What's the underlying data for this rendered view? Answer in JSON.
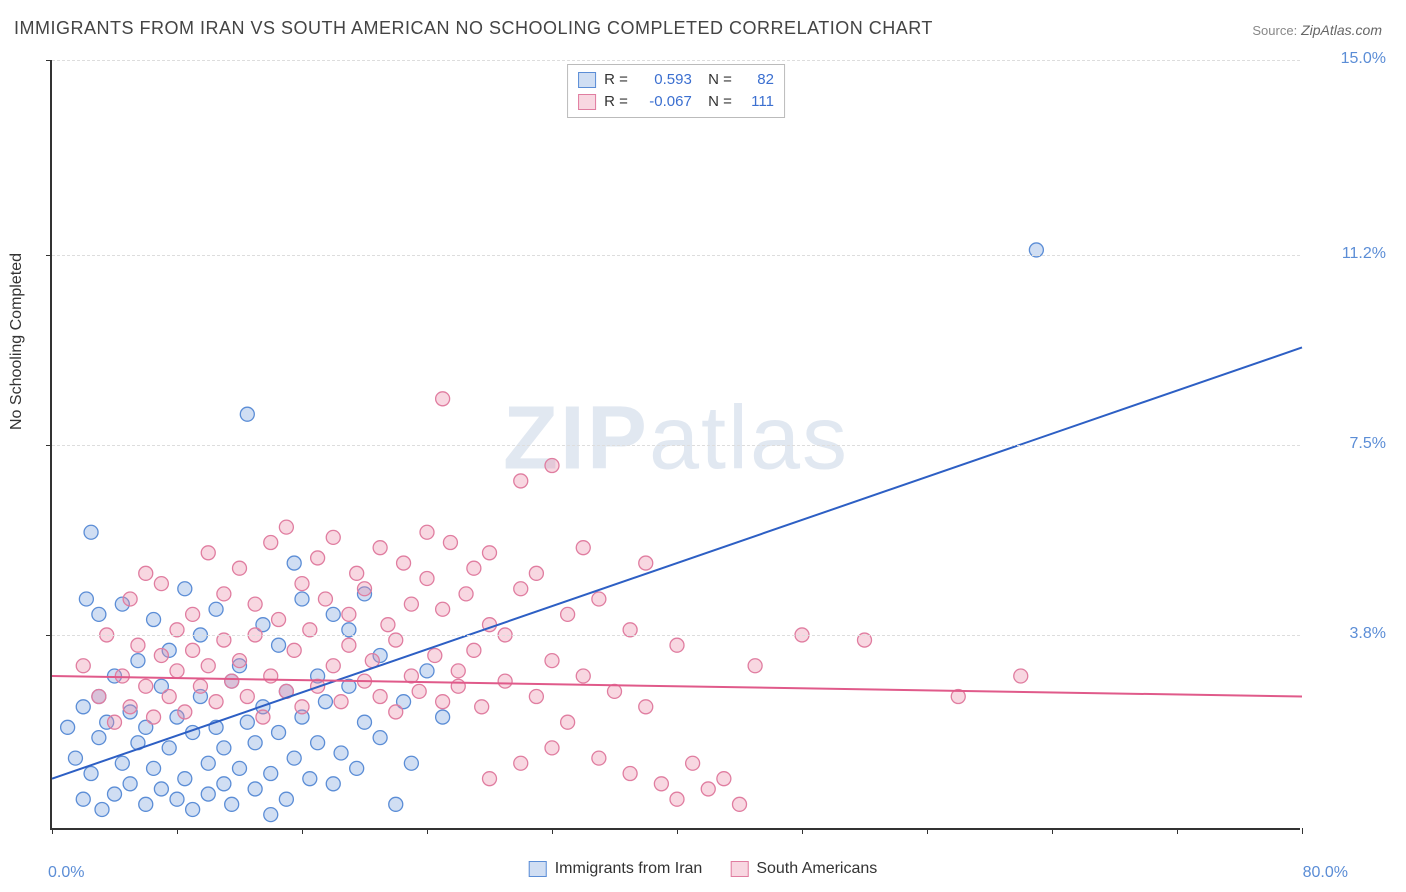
{
  "title": "IMMIGRANTS FROM IRAN VS SOUTH AMERICAN NO SCHOOLING COMPLETED CORRELATION CHART",
  "source_label": "Source:",
  "source_value": "ZipAtlas.com",
  "watermark_bold": "ZIP",
  "watermark_rest": "atlas",
  "chart": {
    "type": "scatter",
    "xlim": [
      0,
      80
    ],
    "ylim": [
      0,
      15
    ],
    "y_axis_label": "No Schooling Completed",
    "bg_color": "#ffffff",
    "grid_color": "#dddddd",
    "y_ticks": [
      0,
      3.8,
      7.5,
      11.2,
      15.0
    ],
    "y_tick_labels": [
      "",
      "3.8%",
      "7.5%",
      "11.2%",
      "15.0%"
    ],
    "x_min_label": "0.0%",
    "x_max_label": "80.0%",
    "x_minor_ticks": [
      0,
      8,
      16,
      24,
      32,
      40,
      48,
      56,
      64,
      72,
      80
    ],
    "marker_radius": 7,
    "marker_stroke_width": 1.3,
    "line_width": 2,
    "series": [
      {
        "name": "Immigrants from Iran",
        "fill": "rgba(120,160,220,0.35)",
        "stroke": "#5b8dd6",
        "line_color": "#2d5fc4",
        "R": "0.593",
        "N": "82",
        "trend": {
          "x1": 0,
          "y1": 1.0,
          "x2": 80,
          "y2": 9.4
        },
        "points": [
          [
            1,
            2.0
          ],
          [
            1.5,
            1.4
          ],
          [
            2,
            2.4
          ],
          [
            2,
            0.6
          ],
          [
            2.2,
            4.5
          ],
          [
            2.5,
            1.1
          ],
          [
            3,
            2.6
          ],
          [
            3,
            1.8
          ],
          [
            3,
            4.2
          ],
          [
            3.2,
            0.4
          ],
          [
            3.5,
            2.1
          ],
          [
            4,
            0.7
          ],
          [
            4,
            3.0
          ],
          [
            4.5,
            1.3
          ],
          [
            4.5,
            4.4
          ],
          [
            5,
            2.3
          ],
          [
            5,
            0.9
          ],
          [
            5.5,
            1.7
          ],
          [
            5.5,
            3.3
          ],
          [
            6,
            0.5
          ],
          [
            6,
            2.0
          ],
          [
            6.5,
            4.1
          ],
          [
            6.5,
            1.2
          ],
          [
            7,
            2.8
          ],
          [
            7,
            0.8
          ],
          [
            7.5,
            1.6
          ],
          [
            7.5,
            3.5
          ],
          [
            8,
            0.6
          ],
          [
            8,
            2.2
          ],
          [
            8.5,
            1.0
          ],
          [
            8.5,
            4.7
          ],
          [
            9,
            1.9
          ],
          [
            9,
            0.4
          ],
          [
            9.5,
            2.6
          ],
          [
            9.5,
            3.8
          ],
          [
            10,
            1.3
          ],
          [
            10,
            0.7
          ],
          [
            10.5,
            2.0
          ],
          [
            10.5,
            4.3
          ],
          [
            11,
            0.9
          ],
          [
            11,
            1.6
          ],
          [
            11.5,
            2.9
          ],
          [
            11.5,
            0.5
          ],
          [
            12,
            1.2
          ],
          [
            12,
            3.2
          ],
          [
            12.5,
            8.1
          ],
          [
            12.5,
            2.1
          ],
          [
            13,
            0.8
          ],
          [
            13,
            1.7
          ],
          [
            13.5,
            4.0
          ],
          [
            13.5,
            2.4
          ],
          [
            14,
            1.1
          ],
          [
            14,
            0.3
          ],
          [
            14.5,
            3.6
          ],
          [
            14.5,
            1.9
          ],
          [
            15,
            2.7
          ],
          [
            15,
            0.6
          ],
          [
            15.5,
            1.4
          ],
          [
            15.5,
            5.2
          ],
          [
            16,
            2.2
          ],
          [
            16,
            4.5
          ],
          [
            16.5,
            1.0
          ],
          [
            17,
            3.0
          ],
          [
            17,
            1.7
          ],
          [
            17.5,
            2.5
          ],
          [
            18,
            0.9
          ],
          [
            18,
            4.2
          ],
          [
            18.5,
            1.5
          ],
          [
            19,
            2.8
          ],
          [
            19,
            3.9
          ],
          [
            19.5,
            1.2
          ],
          [
            20,
            4.6
          ],
          [
            20,
            2.1
          ],
          [
            21,
            3.4
          ],
          [
            21,
            1.8
          ],
          [
            22,
            0.5
          ],
          [
            22.5,
            2.5
          ],
          [
            23,
            1.3
          ],
          [
            24,
            3.1
          ],
          [
            25,
            2.2
          ],
          [
            63,
            11.3
          ],
          [
            2.5,
            5.8
          ]
        ]
      },
      {
        "name": "South Americans",
        "fill": "rgba(235,140,170,0.35)",
        "stroke": "#e07da0",
        "line_color": "#e05a8a",
        "R": "-0.067",
        "N": "111",
        "trend": {
          "x1": 0,
          "y1": 3.0,
          "x2": 80,
          "y2": 2.6
        },
        "points": [
          [
            2,
            3.2
          ],
          [
            3,
            2.6
          ],
          [
            3.5,
            3.8
          ],
          [
            4,
            2.1
          ],
          [
            4.5,
            3.0
          ],
          [
            5,
            4.5
          ],
          [
            5,
            2.4
          ],
          [
            5.5,
            3.6
          ],
          [
            6,
            2.8
          ],
          [
            6,
            5.0
          ],
          [
            6.5,
            2.2
          ],
          [
            7,
            3.4
          ],
          [
            7,
            4.8
          ],
          [
            7.5,
            2.6
          ],
          [
            8,
            3.9
          ],
          [
            8,
            3.1
          ],
          [
            8.5,
            2.3
          ],
          [
            9,
            4.2
          ],
          [
            9,
            3.5
          ],
          [
            9.5,
            2.8
          ],
          [
            10,
            5.4
          ],
          [
            10,
            3.2
          ],
          [
            10.5,
            2.5
          ],
          [
            11,
            4.6
          ],
          [
            11,
            3.7
          ],
          [
            11.5,
            2.9
          ],
          [
            12,
            5.1
          ],
          [
            12,
            3.3
          ],
          [
            12.5,
            2.6
          ],
          [
            13,
            4.4
          ],
          [
            13,
            3.8
          ],
          [
            13.5,
            2.2
          ],
          [
            14,
            5.6
          ],
          [
            14,
            3.0
          ],
          [
            14.5,
            4.1
          ],
          [
            15,
            2.7
          ],
          [
            15,
            5.9
          ],
          [
            15.5,
            3.5
          ],
          [
            16,
            4.8
          ],
          [
            16,
            2.4
          ],
          [
            16.5,
            3.9
          ],
          [
            17,
            5.3
          ],
          [
            17,
            2.8
          ],
          [
            17.5,
            4.5
          ],
          [
            18,
            3.2
          ],
          [
            18,
            5.7
          ],
          [
            18.5,
            2.5
          ],
          [
            19,
            4.2
          ],
          [
            19,
            3.6
          ],
          [
            19.5,
            5.0
          ],
          [
            20,
            2.9
          ],
          [
            20,
            4.7
          ],
          [
            20.5,
            3.3
          ],
          [
            21,
            5.5
          ],
          [
            21,
            2.6
          ],
          [
            21.5,
            4.0
          ],
          [
            22,
            3.7
          ],
          [
            22,
            2.3
          ],
          [
            22.5,
            5.2
          ],
          [
            23,
            4.4
          ],
          [
            23,
            3.0
          ],
          [
            23.5,
            2.7
          ],
          [
            24,
            4.9
          ],
          [
            24,
            5.8
          ],
          [
            24.5,
            3.4
          ],
          [
            25,
            2.5
          ],
          [
            25,
            4.3
          ],
          [
            25.5,
            5.6
          ],
          [
            26,
            3.1
          ],
          [
            26,
            2.8
          ],
          [
            26.5,
            4.6
          ],
          [
            27,
            5.1
          ],
          [
            27,
            3.5
          ],
          [
            27.5,
            2.4
          ],
          [
            28,
            4.0
          ],
          [
            28,
            5.4
          ],
          [
            29,
            3.8
          ],
          [
            29,
            2.9
          ],
          [
            30,
            4.7
          ],
          [
            30,
            1.3
          ],
          [
            31,
            2.6
          ],
          [
            31,
            5.0
          ],
          [
            32,
            3.3
          ],
          [
            32,
            1.6
          ],
          [
            33,
            4.2
          ],
          [
            33,
            2.1
          ],
          [
            34,
            5.5
          ],
          [
            34,
            3.0
          ],
          [
            35,
            1.4
          ],
          [
            35,
            4.5
          ],
          [
            36,
            2.7
          ],
          [
            37,
            3.9
          ],
          [
            37,
            1.1
          ],
          [
            38,
            5.2
          ],
          [
            38,
            2.4
          ],
          [
            39,
            0.9
          ],
          [
            40,
            3.6
          ],
          [
            40,
            0.6
          ],
          [
            41,
            1.3
          ],
          [
            42,
            0.8
          ],
          [
            43,
            1.0
          ],
          [
            44,
            0.5
          ],
          [
            45,
            3.2
          ],
          [
            48,
            3.8
          ],
          [
            52,
            3.7
          ],
          [
            58,
            2.6
          ],
          [
            25,
            8.4
          ],
          [
            30,
            6.8
          ],
          [
            32,
            7.1
          ],
          [
            62,
            3.0
          ],
          [
            28,
            1.0
          ]
        ]
      }
    ],
    "legend_bottom": [
      {
        "label": "Immigrants from Iran"
      },
      {
        "label": "South Americans"
      }
    ]
  }
}
